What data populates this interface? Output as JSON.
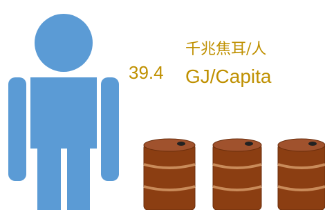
{
  "infographic": {
    "value": 39.4,
    "unit_zh": "千兆焦耳/人",
    "unit_en": "GJ/Capita"
  }
}
